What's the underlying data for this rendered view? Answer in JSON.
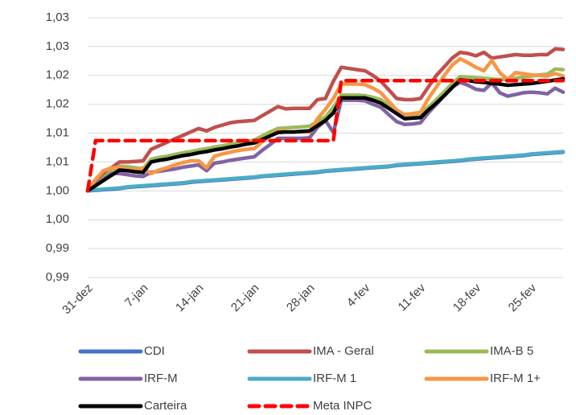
{
  "chart_data": {
    "type": "line",
    "categories": [
      "31-dez",
      null,
      null,
      null,
      null,
      null,
      null,
      "7-jan",
      null,
      null,
      null,
      null,
      null,
      null,
      "14-jan",
      null,
      null,
      null,
      null,
      null,
      null,
      "21-jan",
      null,
      null,
      null,
      null,
      null,
      null,
      "28-jan",
      null,
      null,
      null,
      null,
      null,
      null,
      "4-fev",
      null,
      null,
      null,
      null,
      null,
      null,
      "11-fev",
      null,
      null,
      null,
      null,
      null,
      null,
      "18-fev",
      null,
      null,
      null,
      null,
      null,
      null,
      "25-fev",
      null,
      null,
      null,
      null
    ],
    "ylim": [
      0.985,
      1.03
    ],
    "yticks": [
      {
        "value": 0.985,
        "label": "0,99"
      },
      {
        "value": 0.99,
        "label": "0,99"
      },
      {
        "value": 0.995,
        "label": "1,00"
      },
      {
        "value": 1.0,
        "label": "1,00"
      },
      {
        "value": 1.005,
        "label": "1,01"
      },
      {
        "value": 1.01,
        "label": "1,01"
      },
      {
        "value": 1.015,
        "label": "1,02"
      },
      {
        "value": 1.02,
        "label": "1,02"
      },
      {
        "value": 1.025,
        "label": "1,03"
      },
      {
        "value": 1.03,
        "label": "1,03"
      }
    ],
    "grid": true,
    "series": [
      {
        "name": "CDI",
        "color": "#4472c4",
        "values": [
          1.0,
          1.0001,
          1.0002,
          1.0003,
          1.0004,
          1.0006,
          1.0007,
          1.0008,
          1.0009,
          1.001,
          1.0011,
          1.0012,
          1.0013,
          1.0015,
          1.0016,
          1.0017,
          1.0018,
          1.0019,
          1.002,
          1.0021,
          1.0022,
          1.0023,
          1.0025,
          1.0026,
          1.0027,
          1.0028,
          1.0029,
          1.003,
          1.0031,
          1.0032,
          1.0034,
          1.0035,
          1.0036,
          1.0037,
          1.0038,
          1.0039,
          1.004,
          1.0041,
          1.0042,
          1.0044,
          1.0045,
          1.0046,
          1.0047,
          1.0048,
          1.0049,
          1.005,
          1.0051,
          1.0052,
          1.0054,
          1.0055,
          1.0056,
          1.0057,
          1.0058,
          1.0059,
          1.006,
          1.0061,
          1.0063,
          1.0064,
          1.0065,
          1.0066,
          1.0067
        ]
      },
      {
        "name": "IMA - Geral",
        "color": "#c0504d",
        "values": [
          1.0,
          1.0015,
          1.003,
          1.004,
          1.005,
          1.005,
          1.0051,
          1.0052,
          1.0072,
          1.0078,
          1.0084,
          1.009,
          1.0096,
          1.0102,
          1.0108,
          1.0104,
          1.011,
          1.0114,
          1.0118,
          1.012,
          1.0121,
          1.0122,
          1.013,
          1.0138,
          1.0146,
          1.0142,
          1.0143,
          1.0143,
          1.0143,
          1.0158,
          1.016,
          1.019,
          1.0214,
          1.0212,
          1.021,
          1.0208,
          1.02,
          1.019,
          1.0175,
          1.016,
          1.0158,
          1.0158,
          1.016,
          1.018,
          1.02,
          1.0215,
          1.023,
          1.024,
          1.0238,
          1.0234,
          1.024,
          1.023,
          1.0232,
          1.0234,
          1.0236,
          1.0235,
          1.0235,
          1.0236,
          1.0236,
          1.0246,
          1.0245
        ]
      },
      {
        "name": "IMA-B 5",
        "color": "#9bbb59",
        "values": [
          1.0,
          1.001,
          1.0022,
          1.0035,
          1.0043,
          1.0042,
          1.004,
          1.0038,
          1.0055,
          1.0058,
          1.006,
          1.0063,
          1.0066,
          1.0068,
          1.0071,
          1.0073,
          1.0076,
          1.0078,
          1.0081,
          1.0083,
          1.0086,
          1.0088,
          1.0095,
          1.0102,
          1.0108,
          1.0109,
          1.011,
          1.0111,
          1.0112,
          1.012,
          1.0128,
          1.0145,
          1.0166,
          1.0166,
          1.0166,
          1.0165,
          1.0162,
          1.0158,
          1.0148,
          1.0138,
          1.013,
          1.0131,
          1.0132,
          1.0145,
          1.0158,
          1.0172,
          1.0186,
          1.0198,
          1.0197,
          1.0196,
          1.0195,
          1.0194,
          1.0193,
          1.0193,
          1.0195,
          1.0197,
          1.0199,
          1.0201,
          1.0202,
          1.0211,
          1.021
        ]
      },
      {
        "name": "IRF-M",
        "color": "#8064a2",
        "values": [
          1.0,
          1.001,
          1.002,
          1.003,
          1.003,
          1.0028,
          1.0026,
          1.0025,
          1.0032,
          1.0034,
          1.0036,
          1.0038,
          1.0041,
          1.0043,
          1.0045,
          1.0035,
          1.0048,
          1.005,
          1.0053,
          1.0055,
          1.0057,
          1.0059,
          1.007,
          1.008,
          1.0091,
          1.0091,
          1.0091,
          1.0091,
          1.0092,
          1.011,
          1.0122,
          1.0101,
          1.0157,
          1.0157,
          1.0157,
          1.0156,
          1.015,
          1.0145,
          1.0132,
          1.012,
          1.0115,
          1.0116,
          1.0118,
          1.0135,
          1.015,
          1.0165,
          1.018,
          1.0188,
          1.0183,
          1.0176,
          1.0174,
          1.0187,
          1.017,
          1.0164,
          1.0167,
          1.017,
          1.0171,
          1.017,
          1.0168,
          1.0178,
          1.0171
        ]
      },
      {
        "name": "IRF-M 1",
        "color": "#4bacc6",
        "values": [
          1.0,
          1.0002,
          1.0003,
          1.0004,
          1.0005,
          1.0007,
          1.0008,
          1.0009,
          1.001,
          1.0011,
          1.0012,
          1.0013,
          1.0014,
          1.0016,
          1.0017,
          1.0018,
          1.0019,
          1.002,
          1.0021,
          1.0022,
          1.0023,
          1.0024,
          1.0026,
          1.0027,
          1.0028,
          1.0029,
          1.003,
          1.0031,
          1.0032,
          1.0033,
          1.0035,
          1.0036,
          1.0037,
          1.0038,
          1.0039,
          1.004,
          1.0041,
          1.0042,
          1.0043,
          1.0045,
          1.0046,
          1.0047,
          1.0048,
          1.0049,
          1.005,
          1.0051,
          1.0052,
          1.0053,
          1.0055,
          1.0056,
          1.0057,
          1.0058,
          1.0059,
          1.006,
          1.0061,
          1.0062,
          1.0064,
          1.0065,
          1.0066,
          1.0067,
          1.0068
        ]
      },
      {
        "name": "IRF-M 1+",
        "color": "#f79646",
        "values": [
          1.0,
          1.002,
          1.0035,
          1.004,
          1.004,
          1.0038,
          1.0036,
          1.004,
          1.003,
          1.0036,
          1.004,
          1.0045,
          1.0049,
          1.0052,
          1.0052,
          1.004,
          1.006,
          1.0064,
          1.0067,
          1.007,
          1.0072,
          1.0073,
          1.0085,
          1.0095,
          1.0104,
          1.0102,
          1.0102,
          1.0102,
          1.0102,
          1.0125,
          1.0141,
          1.016,
          1.0185,
          1.0185,
          1.0185,
          1.0184,
          1.0178,
          1.017,
          1.0155,
          1.014,
          1.0132,
          1.0134,
          1.0136,
          1.016,
          1.018,
          1.02,
          1.0218,
          1.0229,
          1.0222,
          1.0214,
          1.0208,
          1.0226,
          1.0205,
          1.0193,
          1.0205,
          1.0203,
          1.0201,
          1.02,
          1.0199,
          1.0203,
          1.0199
        ]
      },
      {
        "name": "Carteira",
        "color": "#000000",
        "values": [
          1.0,
          1.0009,
          1.0018,
          1.0027,
          1.0036,
          1.0035,
          1.0033,
          1.0032,
          1.005,
          1.0053,
          1.0055,
          1.0058,
          1.0061,
          1.0063,
          1.0066,
          1.0068,
          1.0071,
          1.0073,
          1.0076,
          1.0078,
          1.0081,
          1.0083,
          1.0089,
          1.0095,
          1.0101,
          1.0102,
          1.0102,
          1.0103,
          1.0104,
          1.0113,
          1.0122,
          1.0135,
          1.0161,
          1.0161,
          1.0161,
          1.0161,
          1.0157,
          1.0152,
          1.0143,
          1.0134,
          1.0125,
          1.0126,
          1.0127,
          1.014,
          1.0152,
          1.0165,
          1.0179,
          1.0192,
          1.0191,
          1.0189,
          1.0188,
          1.0186,
          1.0185,
          1.0183,
          1.0184,
          1.0185,
          1.0186,
          1.0188,
          1.019,
          1.0192,
          1.0194
        ]
      },
      {
        "name": "Meta INPC",
        "color": "#ff0000",
        "dashed": true,
        "values": [
          1.0,
          1.0087,
          1.0087,
          1.0087,
          1.0087,
          1.0087,
          1.0087,
          1.0087,
          1.0087,
          1.0087,
          1.0087,
          1.0087,
          1.0087,
          1.0087,
          1.0087,
          1.0087,
          1.0087,
          1.0087,
          1.0087,
          1.0087,
          1.0087,
          1.0087,
          1.0087,
          1.0087,
          1.0087,
          1.0087,
          1.0087,
          1.0087,
          1.0087,
          1.0087,
          1.0087,
          1.0087,
          1.0191,
          1.0191,
          1.0191,
          1.0191,
          1.0191,
          1.0191,
          1.0191,
          1.0191,
          1.0191,
          1.0191,
          1.0191,
          1.0191,
          1.0191,
          1.0191,
          1.0191,
          1.0191,
          1.0191,
          1.0191,
          1.0191,
          1.0191,
          1.0191,
          1.0191,
          1.0191,
          1.0191,
          1.0191,
          1.0191,
          1.0191,
          1.0191,
          1.0191
        ]
      }
    ]
  }
}
